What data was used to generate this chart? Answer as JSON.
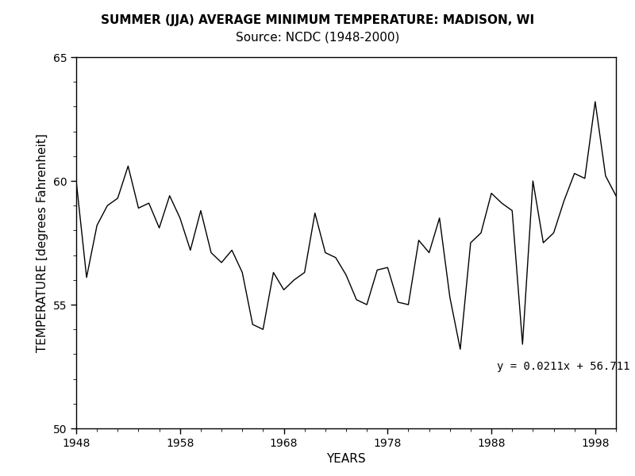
{
  "title": "SUMMER (JJA) AVERAGE MINIMUM TEMPERATURE: MADISON, WI\nSource: NCDC (1948-2000)",
  "xlabel": "YEARS",
  "ylabel": "TEMPERATURE [degrees Fahrenheit]",
  "years": [
    1948,
    1949,
    1950,
    1951,
    1952,
    1953,
    1954,
    1955,
    1956,
    1957,
    1958,
    1959,
    1960,
    1961,
    1962,
    1963,
    1964,
    1965,
    1966,
    1967,
    1968,
    1969,
    1970,
    1971,
    1972,
    1973,
    1974,
    1975,
    1976,
    1977,
    1978,
    1979,
    1980,
    1981,
    1982,
    1983,
    1984,
    1985,
    1986,
    1987,
    1988,
    1989,
    1990,
    1991,
    1992,
    1993,
    1994,
    1995,
    1996,
    1997,
    1998,
    1999,
    2000
  ],
  "temps": [
    60.0,
    56.1,
    58.2,
    59.0,
    59.3,
    60.6,
    58.9,
    59.1,
    58.1,
    59.4,
    58.5,
    57.2,
    58.8,
    57.1,
    56.7,
    57.2,
    56.3,
    54.2,
    54.0,
    56.3,
    55.6,
    56.0,
    56.3,
    58.7,
    57.1,
    56.9,
    56.2,
    55.2,
    55.0,
    56.4,
    56.5,
    55.1,
    55.0,
    57.6,
    57.1,
    58.5,
    55.3,
    53.2,
    57.5,
    57.9,
    59.5,
    59.1,
    58.8,
    53.4,
    60.0,
    57.5,
    57.9,
    59.2,
    60.3,
    60.1,
    63.2,
    60.2,
    59.4
  ],
  "trend_slope": 0.0211,
  "trend_intercept": 56.711,
  "equation_text": "y = 0.0211x + 56.711",
  "equation_x": 1988.5,
  "equation_y": 52.5,
  "xlim": [
    1948,
    2000
  ],
  "ylim": [
    50,
    65
  ],
  "yticks": [
    50,
    55,
    60,
    65
  ],
  "xticks": [
    1948,
    1958,
    1968,
    1978,
    1988,
    1998
  ],
  "line_color": "#000000",
  "trend_color": "#000000",
  "trend_linewidth": 2.5,
  "data_linewidth": 1.0,
  "bg_color": "#ffffff",
  "title_fontsize": 11,
  "axis_label_fontsize": 11,
  "tick_fontsize": 10,
  "equation_fontsize": 10
}
